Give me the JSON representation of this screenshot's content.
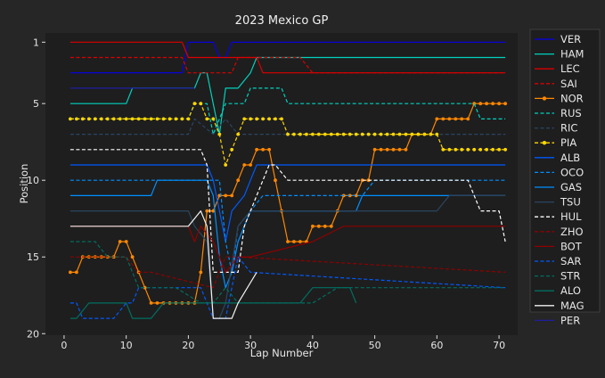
{
  "chart_data": {
    "type": "line",
    "title": "2023 Mexico GP",
    "xlabel": "Lap Number",
    "ylabel": "Position",
    "xlim": [
      -3,
      73
    ],
    "ylim": [
      20.1,
      0.4
    ],
    "y_inverted": true,
    "xticks": [
      0,
      10,
      20,
      30,
      40,
      50,
      60,
      70
    ],
    "yticks": [
      1,
      5,
      10,
      15,
      20
    ],
    "grid": false,
    "legend_position": "right",
    "background": "#262626",
    "plot_background": "#1e1e1e",
    "series": [
      {
        "name": "VER",
        "color": "#0600ef",
        "style": "solid",
        "marker": "none",
        "points": [
          [
            1,
            3
          ],
          [
            19,
            3
          ],
          [
            20,
            1
          ],
          [
            24,
            1
          ],
          [
            25,
            2
          ],
          [
            26,
            2
          ],
          [
            27,
            1
          ],
          [
            71,
            1
          ]
        ]
      },
      {
        "name": "HAM",
        "color": "#00d2be",
        "style": "solid",
        "marker": "none",
        "points": [
          [
            1,
            5
          ],
          [
            10,
            5
          ],
          [
            11,
            4
          ],
          [
            21,
            4
          ],
          [
            22,
            3
          ],
          [
            23,
            3
          ],
          [
            24,
            5
          ],
          [
            25,
            7
          ],
          [
            26,
            4
          ],
          [
            28,
            4
          ],
          [
            30,
            3
          ],
          [
            31,
            2
          ],
          [
            71,
            2
          ]
        ]
      },
      {
        "name": "LEC",
        "color": "#dc0000",
        "style": "solid",
        "marker": "none",
        "points": [
          [
            1,
            1
          ],
          [
            19,
            1
          ],
          [
            20,
            2
          ],
          [
            31,
            2
          ],
          [
            32,
            3
          ],
          [
            39,
            3
          ],
          [
            40,
            3
          ],
          [
            71,
            3
          ]
        ]
      },
      {
        "name": "SAI",
        "color": "#dc0000",
        "style": "dashed",
        "marker": "none",
        "points": [
          [
            1,
            2
          ],
          [
            19,
            2
          ],
          [
            20,
            3
          ],
          [
            27,
            3
          ],
          [
            28,
            2
          ],
          [
            38,
            2
          ],
          [
            40,
            3
          ],
          [
            71,
            3
          ]
        ]
      },
      {
        "name": "NOR",
        "color": "#ff8700",
        "style": "solid",
        "marker": "dot",
        "points": [
          [
            1,
            16
          ],
          [
            2,
            16
          ],
          [
            3,
            15
          ],
          [
            4,
            15
          ],
          [
            8,
            15
          ],
          [
            9,
            14
          ],
          [
            10,
            14
          ],
          [
            11,
            15
          ],
          [
            12,
            16
          ],
          [
            13,
            17
          ],
          [
            14,
            18
          ],
          [
            21,
            18
          ],
          [
            22,
            16
          ],
          [
            23,
            12
          ],
          [
            24,
            12
          ],
          [
            25,
            11
          ],
          [
            27,
            11
          ],
          [
            28,
            10
          ],
          [
            29,
            9
          ],
          [
            30,
            9
          ],
          [
            31,
            8
          ],
          [
            33,
            8
          ],
          [
            34,
            10
          ],
          [
            35,
            12
          ],
          [
            36,
            14
          ],
          [
            39,
            14
          ],
          [
            40,
            13
          ],
          [
            43,
            13
          ],
          [
            44,
            12
          ],
          [
            45,
            11
          ],
          [
            47,
            11
          ],
          [
            48,
            10
          ],
          [
            49,
            10
          ],
          [
            50,
            8
          ],
          [
            55,
            8
          ],
          [
            56,
            7
          ],
          [
            59,
            7
          ],
          [
            60,
            6
          ],
          [
            65,
            6
          ],
          [
            66,
            5
          ],
          [
            71,
            5
          ]
        ]
      },
      {
        "name": "RUS",
        "color": "#00d2be",
        "style": "dashed",
        "marker": "none",
        "points": [
          [
            1,
            6
          ],
          [
            20,
            6
          ],
          [
            21,
            5
          ],
          [
            23,
            5
          ],
          [
            24,
            7
          ],
          [
            25,
            6
          ],
          [
            26,
            5
          ],
          [
            29,
            5
          ],
          [
            30,
            4
          ],
          [
            35,
            4
          ],
          [
            36,
            5
          ],
          [
            66,
            5
          ],
          [
            67,
            6
          ],
          [
            71,
            6
          ]
        ]
      },
      {
        "name": "RIC",
        "color": "#2b4562",
        "style": "dashed",
        "marker": "none",
        "points": [
          [
            1,
            7
          ],
          [
            20,
            7
          ],
          [
            21,
            6
          ],
          [
            24,
            7
          ],
          [
            26,
            6
          ],
          [
            28,
            7
          ],
          [
            71,
            7
          ]
        ]
      },
      {
        "name": "PIA",
        "color": "#ffd700",
        "style": "dashed",
        "marker": "dot",
        "points": [
          [
            1,
            6
          ],
          [
            20,
            6
          ],
          [
            21,
            5
          ],
          [
            22,
            5
          ],
          [
            23,
            6
          ],
          [
            24,
            6
          ],
          [
            25,
            7
          ],
          [
            26,
            9
          ],
          [
            27,
            8
          ],
          [
            28,
            7
          ],
          [
            29,
            6
          ],
          [
            35,
            6
          ],
          [
            36,
            7
          ],
          [
            60,
            7
          ],
          [
            61,
            8
          ],
          [
            71,
            8
          ]
        ]
      },
      {
        "name": "ALB",
        "color": "#005aff",
        "style": "solid",
        "marker": "none",
        "points": [
          [
            1,
            9
          ],
          [
            23,
            9
          ],
          [
            24,
            10
          ],
          [
            25,
            12
          ],
          [
            26,
            14
          ],
          [
            27,
            12
          ],
          [
            29,
            11
          ],
          [
            30,
            10
          ],
          [
            31,
            9
          ],
          [
            71,
            9
          ]
        ]
      },
      {
        "name": "OCO",
        "color": "#0090ff",
        "style": "dashed",
        "marker": "none",
        "points": [
          [
            1,
            10
          ],
          [
            25,
            10
          ],
          [
            26,
            14
          ],
          [
            27,
            16
          ],
          [
            28,
            13
          ],
          [
            30,
            12
          ],
          [
            32,
            11
          ],
          [
            48,
            11
          ],
          [
            50,
            10
          ],
          [
            71,
            10
          ]
        ]
      },
      {
        "name": "GAS",
        "color": "#0090ff",
        "style": "solid",
        "marker": "none",
        "points": [
          [
            1,
            11
          ],
          [
            14,
            11
          ],
          [
            15,
            10
          ],
          [
            23,
            10
          ],
          [
            24,
            11
          ],
          [
            25,
            15
          ],
          [
            26,
            17
          ],
          [
            27,
            16
          ],
          [
            28,
            14
          ],
          [
            30,
            12
          ],
          [
            47,
            12
          ],
          [
            48,
            11
          ],
          [
            71,
            11
          ]
        ]
      },
      {
        "name": "TSU",
        "color": "#2b4562",
        "style": "solid",
        "marker": "none",
        "points": [
          [
            1,
            12
          ],
          [
            20,
            12
          ],
          [
            21,
            13
          ],
          [
            23,
            14
          ],
          [
            24,
            19
          ],
          [
            25,
            19
          ],
          [
            26,
            18
          ],
          [
            28,
            13
          ],
          [
            30,
            12
          ],
          [
            60,
            12
          ],
          [
            62,
            11
          ],
          [
            71,
            11
          ]
        ]
      },
      {
        "name": "HUL",
        "color": "#ffffff",
        "style": "dashed",
        "marker": "none",
        "points": [
          [
            1,
            8
          ],
          [
            21,
            8
          ],
          [
            22,
            8
          ],
          [
            23,
            9
          ],
          [
            24,
            16
          ],
          [
            28,
            16
          ],
          [
            29,
            13
          ],
          [
            31,
            11
          ],
          [
            33,
            9
          ],
          [
            34,
            9
          ],
          [
            36,
            10
          ],
          [
            65,
            10
          ],
          [
            67,
            12
          ],
          [
            70,
            12
          ],
          [
            71,
            14
          ]
        ]
      },
      {
        "name": "ZHO",
        "color": "#900000",
        "style": "dashed",
        "marker": "none",
        "points": [
          [
            1,
            15
          ],
          [
            10,
            15
          ],
          [
            12,
            16
          ],
          [
            14,
            16
          ],
          [
            24,
            17
          ],
          [
            26,
            15
          ],
          [
            28,
            15
          ],
          [
            71,
            16
          ]
        ]
      },
      {
        "name": "BOT",
        "color": "#900000",
        "style": "solid",
        "marker": "none",
        "points": [
          [
            1,
            13
          ],
          [
            20,
            13
          ],
          [
            21,
            14
          ],
          [
            22,
            13
          ],
          [
            24,
            14
          ],
          [
            26,
            16
          ],
          [
            28,
            15
          ],
          [
            30,
            15
          ],
          [
            40,
            14
          ],
          [
            45,
            13
          ],
          [
            50,
            13
          ],
          [
            71,
            13
          ]
        ]
      },
      {
        "name": "SAR",
        "color": "#005aff",
        "style": "dashed",
        "marker": "none",
        "points": [
          [
            1,
            18
          ],
          [
            2,
            18
          ],
          [
            3,
            19
          ],
          [
            8,
            19
          ],
          [
            10,
            18
          ],
          [
            11,
            18
          ],
          [
            12,
            17
          ],
          [
            20,
            17
          ],
          [
            22,
            17
          ],
          [
            24,
            19
          ],
          [
            26,
            19
          ],
          [
            27,
            17
          ],
          [
            28,
            15
          ],
          [
            30,
            16
          ],
          [
            71,
            17
          ]
        ]
      },
      {
        "name": "STR",
        "color": "#006f62",
        "style": "dashed",
        "marker": "none",
        "points": [
          [
            1,
            14
          ],
          [
            5,
            14
          ],
          [
            7,
            15
          ],
          [
            10,
            15
          ],
          [
            12,
            17
          ],
          [
            18,
            17
          ],
          [
            22,
            18
          ],
          [
            24,
            18
          ],
          [
            26,
            17
          ],
          [
            28,
            18
          ],
          [
            40,
            18
          ],
          [
            44,
            17
          ],
          [
            71,
            17
          ]
        ]
      },
      {
        "name": "ALO",
        "color": "#006f62",
        "style": "solid",
        "marker": "none",
        "points": [
          [
            1,
            19
          ],
          [
            2,
            19
          ],
          [
            4,
            18
          ],
          [
            10,
            18
          ],
          [
            11,
            19
          ],
          [
            14,
            19
          ],
          [
            16,
            18
          ],
          [
            22,
            18
          ],
          [
            24,
            18
          ],
          [
            26,
            18
          ],
          [
            28,
            18
          ],
          [
            38,
            18
          ],
          [
            40,
            17
          ],
          [
            46,
            17
          ],
          [
            47,
            18
          ]
        ]
      },
      {
        "name": "MAG",
        "color": "#f2f2f2",
        "style": "solid",
        "marker": "none",
        "points": [
          [
            1,
            13
          ],
          [
            20,
            13
          ],
          [
            22,
            12
          ],
          [
            23,
            13
          ],
          [
            24,
            19
          ],
          [
            27,
            19
          ],
          [
            28,
            18
          ],
          [
            31,
            16
          ]
        ]
      },
      {
        "name": "PER",
        "color": "#1e1ea0",
        "style": "solid",
        "marker": "none",
        "points": [
          [
            1,
            4
          ],
          [
            20,
            4
          ],
          [
            21,
            4
          ]
        ]
      }
    ]
  }
}
